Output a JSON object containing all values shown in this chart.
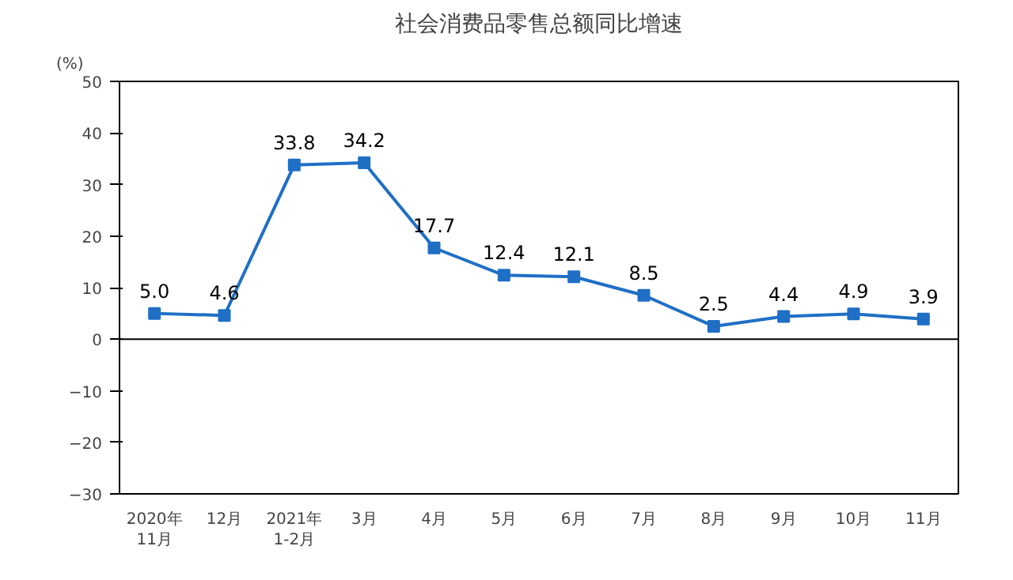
{
  "chart_data": {
    "type": "line",
    "title": "社会消费品零售总额同比增速",
    "ylabel": "(%)",
    "categories": [
      "2020年\n11月",
      "12月",
      "2021年\n1-2月",
      "3月",
      "4月",
      "5月",
      "6月",
      "7月",
      "8月",
      "9月",
      "10月",
      "11月"
    ],
    "series": [
      {
        "color": "#1f6fc5",
        "values": [
          5.0,
          4.6,
          33.8,
          34.2,
          17.7,
          12.4,
          12.1,
          8.5,
          2.5,
          4.4,
          4.9,
          3.9
        ]
      }
    ],
    "ylim": [
      -30,
      50
    ],
    "yticks": [
      -30,
      -20,
      -10,
      0,
      10,
      20,
      30,
      40,
      50
    ],
    "ref_lines": [
      {
        "axis": "y",
        "value": 0,
        "color": "#000000"
      }
    ],
    "value_labels": [
      "5.0",
      "4.6",
      "33.8",
      "34.2",
      "17.7",
      "12.4",
      "12.1",
      "8.5",
      "2.5",
      "4.4",
      "4.9",
      "3.9"
    ],
    "marker": "square",
    "line_style": "solid",
    "grid": false
  }
}
